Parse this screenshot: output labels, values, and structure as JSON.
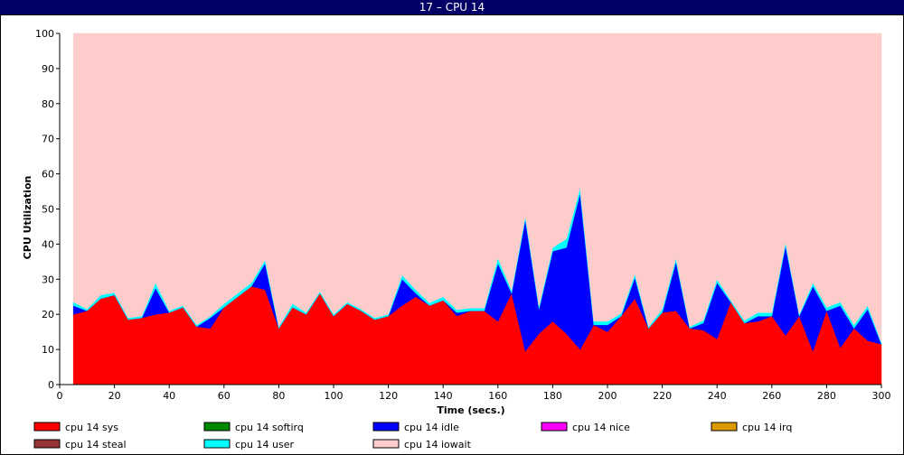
{
  "window": {
    "title": "17 – CPU 14"
  },
  "chart_data": {
    "type": "area",
    "stacked": true,
    "xlabel": "Time (secs.)",
    "ylabel": "CPU Utilization",
    "xlim": [
      0,
      300
    ],
    "ylim": [
      0,
      100
    ],
    "xticks": [
      0,
      20,
      40,
      60,
      80,
      100,
      120,
      140,
      160,
      180,
      200,
      220,
      240,
      260,
      280,
      300
    ],
    "yticks": [
      0,
      10,
      20,
      30,
      40,
      50,
      60,
      70,
      80,
      90,
      100
    ],
    "grid": false,
    "legend_placement": "bottom",
    "x": [
      5,
      10,
      15,
      20,
      25,
      30,
      35,
      40,
      45,
      50,
      55,
      60,
      65,
      70,
      75,
      80,
      85,
      90,
      95,
      100,
      105,
      110,
      115,
      120,
      125,
      130,
      135,
      140,
      145,
      150,
      155,
      160,
      165,
      170,
      175,
      180,
      185,
      190,
      195,
      200,
      205,
      210,
      215,
      220,
      225,
      230,
      235,
      240,
      245,
      250,
      255,
      260,
      265,
      270,
      275,
      280,
      285,
      290,
      295,
      300
    ],
    "series": [
      {
        "name": "cpu 14 sys",
        "color": "#ff0000",
        "values": [
          20,
          21,
          24.5,
          25.5,
          18.5,
          19,
          20,
          20.5,
          22,
          16.5,
          16,
          22,
          25,
          28,
          27,
          16,
          22,
          20,
          26,
          19.5,
          23,
          21,
          18.5,
          19.5,
          22.5,
          25,
          22.5,
          24,
          19.5,
          21,
          21,
          18,
          26,
          9.5,
          14.5,
          18,
          14.5,
          10,
          17,
          15,
          19.5,
          24.5,
          16,
          20.5,
          21,
          16,
          15.5,
          13,
          23.5,
          17.5,
          18,
          19.5,
          14,
          19.5,
          9.5,
          21,
          10.5,
          16,
          12.5,
          11.5
        ]
      },
      {
        "name": "cpu 14 softirq",
        "color": "#008800",
        "values": [
          0,
          0,
          0,
          0,
          0,
          0,
          0,
          0,
          0,
          0,
          0,
          0,
          0,
          0,
          0,
          0,
          0,
          0,
          0,
          0,
          0,
          0,
          0,
          0,
          0,
          0,
          0,
          0,
          0,
          0,
          0,
          0,
          0,
          0,
          0,
          0,
          0,
          0,
          0,
          0,
          0,
          0,
          0,
          0,
          0,
          0,
          0,
          0,
          0,
          0,
          0,
          0,
          0,
          0,
          0,
          0,
          0,
          0,
          0,
          0
        ]
      },
      {
        "name": "cpu 14 idle",
        "color": "#0000ff",
        "values": [
          2.5,
          0,
          0,
          0,
          0,
          0,
          7.5,
          0,
          0,
          0,
          3,
          0,
          0,
          0,
          7.5,
          0,
          0,
          0,
          0,
          0,
          0,
          0,
          0,
          0,
          7.5,
          1,
          0,
          0,
          1,
          0,
          0,
          16.5,
          0,
          37.5,
          7,
          20,
          24.5,
          44.5,
          0,
          2,
          0,
          6,
          0,
          0,
          14,
          0,
          2,
          16,
          0,
          0,
          1.5,
          0,
          25.5,
          0,
          18.5,
          0,
          12,
          0,
          9,
          0
        ]
      },
      {
        "name": "cpu 14 nice",
        "color": "#ff00ff",
        "values": [
          0,
          0,
          0,
          0,
          0,
          0,
          0,
          0,
          0,
          0,
          0,
          0,
          0,
          0,
          0,
          0,
          0,
          0,
          0,
          0,
          0,
          0,
          0,
          0,
          0,
          0,
          0,
          0,
          0,
          0,
          0,
          0,
          0,
          0,
          0,
          0,
          0,
          0,
          0,
          0,
          0,
          0,
          0,
          0,
          0,
          0,
          0,
          0,
          0,
          0,
          0,
          0,
          0,
          0,
          0,
          0,
          0,
          0,
          0,
          0
        ]
      },
      {
        "name": "cpu 14 irq",
        "color": "#dd9900",
        "values": [
          0,
          0,
          0,
          0,
          0,
          0,
          0,
          0,
          0,
          0,
          0,
          0,
          0,
          0,
          0,
          0,
          0,
          0,
          0,
          0,
          0,
          0,
          0,
          0,
          0,
          0,
          0,
          0,
          0,
          0,
          0,
          0,
          0,
          0,
          0,
          0,
          0,
          0,
          0,
          0,
          0,
          0,
          0,
          0,
          0,
          0,
          0,
          0,
          0,
          0,
          0,
          0,
          0,
          0,
          0,
          0,
          0,
          0,
          0,
          0
        ]
      },
      {
        "name": "cpu 14 steal",
        "color": "#993333",
        "values": [
          0,
          0,
          0,
          0,
          0,
          0,
          0,
          0,
          0,
          0,
          0,
          0,
          0,
          0,
          0,
          0,
          0,
          0,
          0,
          0,
          0,
          0,
          0,
          0,
          0,
          0,
          0,
          0,
          0,
          0,
          0,
          0,
          0,
          0,
          0,
          0,
          0,
          0,
          0,
          0,
          0,
          0,
          0,
          0,
          0,
          0,
          0,
          0,
          0,
          0,
          0,
          0,
          0,
          0,
          0,
          0,
          0,
          0,
          0,
          0
        ]
      },
      {
        "name": "cpu 14 user",
        "color": "#00ffff",
        "values": [
          1,
          0.5,
          1,
          0.7,
          0.5,
          0.5,
          1.5,
          0.5,
          0.5,
          0.5,
          0.5,
          1,
          1,
          1,
          1,
          0.5,
          1,
          0.5,
          0.5,
          0.5,
          0.5,
          0.5,
          0.5,
          0.5,
          1.2,
          1,
          0.8,
          1,
          0.8,
          0.8,
          0.8,
          1.5,
          0.8,
          1,
          0.8,
          1,
          2.5,
          1.5,
          1,
          1,
          0.8,
          1,
          0.5,
          1,
          1,
          0.5,
          0.8,
          1,
          0.5,
          0.8,
          1,
          1,
          1,
          0.5,
          1,
          1,
          1,
          1,
          1,
          0.5
        ]
      },
      {
        "name": "cpu 14 iowait",
        "color": "#ffcccc",
        "values": [
          76.5,
          78.5,
          74.5,
          73.8,
          81,
          80.5,
          71,
          79,
          77.5,
          83,
          80.5,
          77,
          74,
          71,
          64.5,
          83.5,
          77,
          79.5,
          73.5,
          80,
          76.5,
          78.5,
          81,
          80,
          68.8,
          73,
          76.7,
          75,
          78.7,
          78.2,
          78.2,
          64,
          73.2,
          52,
          77.7,
          61,
          58.5,
          44,
          82,
          82,
          79.7,
          68.5,
          83.5,
          78.5,
          64,
          83.5,
          81.7,
          70,
          76,
          81.7,
          79.5,
          79.5,
          59.5,
          80,
          71,
          78,
          76.5,
          83,
          77.5,
          88
        ]
      }
    ]
  }
}
